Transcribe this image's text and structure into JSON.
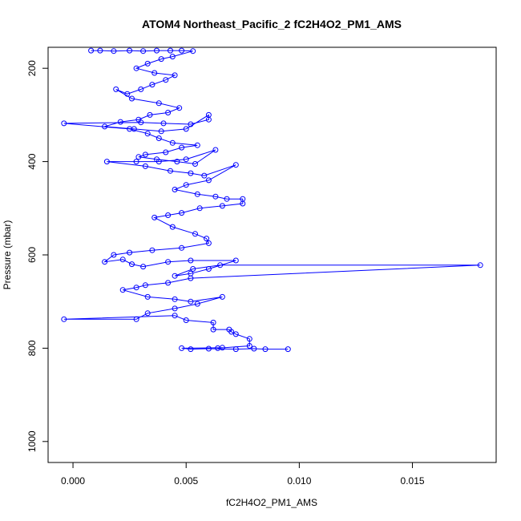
{
  "chart_data": {
    "type": "scatter",
    "title": "ATOM4 Northeast_Pacific_2 fC2H4O2_PM1_AMS",
    "xlabel": "fC2H4O2_PM1_AMS",
    "ylabel": "Pressure (mbar)",
    "xlim": [
      -0.0011,
      0.0187
    ],
    "ylim": [
      1045,
      155
    ],
    "y_reversed": true,
    "x_ticks": [
      0.0,
      0.005,
      0.01,
      0.015
    ],
    "x_tick_labels": [
      "0.000",
      "0.005",
      "0.010",
      "0.015"
    ],
    "y_ticks": [
      200,
      400,
      600,
      800,
      1000
    ],
    "y_tick_labels": [
      "200",
      "400",
      "600",
      "800",
      "1000"
    ],
    "grid": false,
    "style": "points connected by lines",
    "colors": {
      "series": "#0000ff",
      "axis": "#000000"
    },
    "series": [
      {
        "x": [
          0.0008,
          0.0012,
          0.0018,
          0.0025,
          0.0031,
          0.0037,
          0.0043,
          0.0048,
          0.0053,
          0.0044,
          0.0039,
          0.0033,
          0.0028,
          0.0036,
          0.0045,
          0.0041,
          0.0035,
          0.003,
          0.0024,
          0.0019,
          0.0026,
          0.0038,
          0.0047,
          0.0042,
          0.0034,
          0.0029,
          0.0021,
          0.0014,
          0.0027,
          0.0039,
          0.005,
          0.006,
          0.006,
          0.0052,
          0.004,
          0.003,
          -0.0004,
          0.0025,
          0.0033,
          0.0038,
          0.0044,
          0.0055,
          0.0048,
          0.0041,
          0.0032,
          0.0029,
          0.0037,
          0.0046,
          0.0054,
          0.0063,
          0.005,
          0.0038,
          0.0028,
          0.0015,
          0.0032,
          0.0043,
          0.0052,
          0.0058,
          0.0072,
          0.006,
          0.005,
          0.0045,
          0.0055,
          0.0063,
          0.0068,
          0.0075,
          0.0075,
          0.0066,
          0.0056,
          0.0048,
          0.0042,
          0.0036,
          0.0044,
          0.0054,
          0.0059,
          0.006,
          0.0048,
          0.0035,
          0.0025,
          0.0018,
          0.0014,
          0.0022,
          0.0026,
          0.0031,
          0.0042,
          0.0052,
          0.0072,
          0.006,
          0.0052,
          0.0045,
          0.0053,
          0.0065,
          0.018,
          0.0052,
          0.0042,
          0.0032,
          0.0028,
          0.0022,
          0.0033,
          0.0045,
          0.0052,
          0.0066,
          0.0055,
          0.0045,
          0.0033,
          0.0028,
          -0.0004,
          0.0045,
          0.005,
          0.0062,
          0.0062,
          0.0069,
          0.007,
          0.0072,
          0.0078,
          0.0078,
          0.0064,
          0.0066,
          0.0048,
          0.0052,
          0.006,
          0.0072,
          0.008,
          0.0085,
          0.0095
        ],
        "y": [
          162,
          162,
          163,
          162,
          163,
          162,
          162,
          162,
          163,
          175,
          180,
          190,
          200,
          210,
          215,
          225,
          235,
          245,
          255,
          245,
          265,
          275,
          285,
          295,
          300,
          310,
          315,
          325,
          330,
          335,
          330,
          300,
          310,
          320,
          318,
          316,
          318,
          330,
          340,
          350,
          360,
          365,
          370,
          380,
          385,
          390,
          395,
          400,
          405,
          375,
          395,
          400,
          400,
          400,
          410,
          420,
          425,
          430,
          407,
          440,
          450,
          460,
          470,
          475,
          480,
          480,
          490,
          495,
          500,
          510,
          515,
          520,
          540,
          555,
          565,
          575,
          585,
          590,
          595,
          600,
          615,
          610,
          620,
          625,
          615,
          612,
          612,
          630,
          640,
          645,
          630,
          622,
          622,
          650,
          660,
          665,
          670,
          675,
          690,
          695,
          700,
          690,
          705,
          715,
          725,
          738,
          738,
          730,
          740,
          745,
          760,
          760,
          765,
          770,
          780,
          795,
          800,
          799,
          800,
          802,
          801,
          802,
          801,
          802,
          802
        ]
      }
    ]
  }
}
